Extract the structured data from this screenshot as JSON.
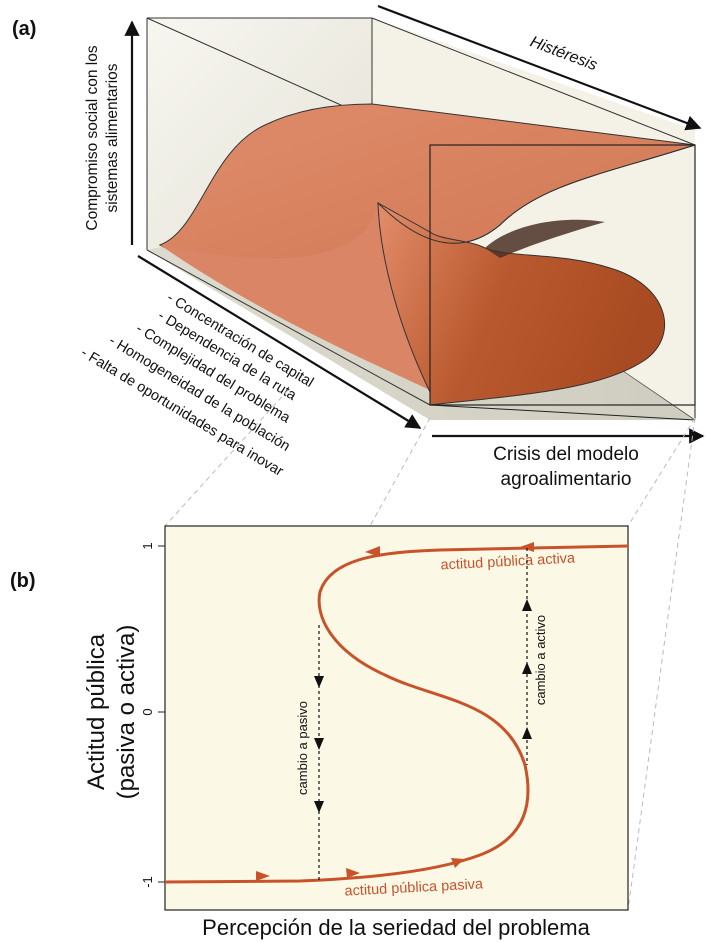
{
  "panel_a": {
    "label": "(a)",
    "z_axis_label": [
      "Compromiso social con los",
      "sistemas alimentarios"
    ],
    "hysteresis_label": "Histéresis",
    "factors": [
      "- Concentración de capital",
      "- Dependencia de la ruta",
      "- Complejidad del problema",
      "- Homogeneidad de la población",
      "- Falta de oportunidades para inovar"
    ],
    "x_axis_label": [
      "Crisis del modelo",
      "agroalimentario"
    ]
  },
  "panel_b": {
    "label": "(b)",
    "y_axis_label": [
      "Actitud pública",
      "(pasiva o activa)"
    ],
    "y_ticks": [
      "1",
      "0",
      "-1"
    ],
    "x_axis_label": "Percepción de la seriedad del problema",
    "curve_labels": {
      "upper": "actitud pública activa",
      "lower": "actitud pública pasiva"
    },
    "transition_labels": {
      "to_passive": "cambio a pasivo",
      "to_active": "cambio a activo"
    }
  },
  "colors": {
    "surface": "#d98566",
    "surface_dark": "#b6532d",
    "curve": "#c8532b",
    "plot_bg": "#fbf9e6",
    "box_bg": "#f1efe2"
  }
}
